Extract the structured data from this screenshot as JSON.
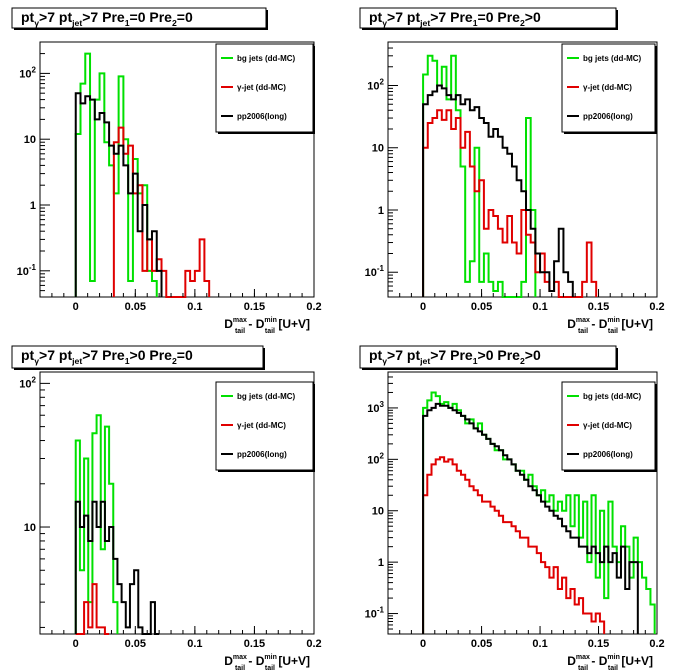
{
  "chart_data": [
    {
      "type": "line",
      "step": true,
      "title": "pt_γ>7  pt_jet>7  Pre_1=0  Pre_2=0",
      "xlabel": "D_tail^max - D_tail^min  [U+V]",
      "xlim": [
        -0.03,
        0.2
      ],
      "ylim": [
        0.04,
        300
      ],
      "log_y": true,
      "x_ticks": [
        "0",
        "0.05",
        "0.1",
        "0.15",
        "0.2"
      ],
      "y_ticks": [
        "10^-1",
        "1",
        "10",
        "10^2"
      ],
      "legend": [
        "bg jets (dd-MC)",
        "γ-jet (dd-MC)",
        "pp2006(long)"
      ],
      "legend_position": "top-right",
      "bin_width": 0.004,
      "series": [
        {
          "name": "bg jets (dd-MC)",
          "color": "#00e000",
          "x0": 0,
          "values": [
            12,
            70,
            200,
            0.07,
            40,
            100,
            9,
            4,
            1.5,
            90,
            10,
            0.07,
            5,
            1.5,
            2,
            0.1,
            0.07
          ]
        },
        {
          "name": "γ-jet (dd-MC)",
          "color": "#e00000",
          "x0": 0.032,
          "values": [
            9,
            15,
            6,
            8,
            1.5,
            2,
            0.1,
            0.3,
            0.1,
            0.15,
            0.1,
            0,
            0,
            0,
            0,
            0.1,
            0.07,
            0.1,
            0.3,
            0.07
          ]
        },
        {
          "name": "pp2006(long)",
          "color": "#000000",
          "x0": 0,
          "values": [
            50,
            35,
            45,
            40,
            20,
            25,
            18,
            8,
            6,
            8,
            4,
            1.5,
            3,
            0.4,
            1,
            0.3,
            0.4,
            0.1
          ]
        }
      ]
    },
    {
      "type": "line",
      "step": true,
      "title": "pt_γ>7  pt_jet>7  Pre_1=0  Pre_2>0",
      "xlabel": "D_tail^max - D_tail^min  [U+V]",
      "xlim": [
        -0.03,
        0.2
      ],
      "ylim": [
        0.04,
        500
      ],
      "log_y": true,
      "x_ticks": [
        "0",
        "0.05",
        "0.1",
        "0.15",
        "0.2"
      ],
      "y_ticks": [
        "10^-1",
        "1",
        "10",
        "10^2"
      ],
      "legend": [
        "bg jets (dd-MC)",
        "γ-jet (dd-MC)",
        "pp2006(long)"
      ],
      "legend_position": "top-right",
      "bin_width": 0.004,
      "series": [
        {
          "name": "bg jets (dd-MC)",
          "color": "#00e000",
          "x0": 0,
          "values": [
            150,
            300,
            250,
            100,
            200,
            60,
            300,
            40,
            5,
            0.07,
            0.15,
            10,
            0.07,
            0.2,
            0.07,
            0.05,
            0.07,
            0,
            0,
            0,
            0,
            0.07,
            30,
            1
          ]
        },
        {
          "name": "γ-jet (dd-MC)",
          "color": "#e00000",
          "x0": 0,
          "values": [
            10,
            25,
            30,
            40,
            28,
            40,
            20,
            30,
            10,
            18,
            5,
            2,
            3,
            0.5,
            1,
            0.8,
            0.5,
            0.3,
            0.8,
            0.3,
            0.2,
            1,
            0.4,
            0.3,
            0.1,
            0.2,
            0.07,
            0.05,
            0.07,
            0,
            0,
            0,
            0,
            0,
            0.07,
            0.3,
            0.07
          ]
        },
        {
          "name": "pp2006(long)",
          "color": "#000000",
          "x0": 0,
          "values": [
            50,
            70,
            80,
            100,
            90,
            70,
            60,
            70,
            50,
            60,
            40,
            45,
            30,
            25,
            15,
            20,
            15,
            10,
            8,
            5,
            3,
            2,
            1,
            0.5,
            0.2,
            0.1,
            0.1,
            0.05,
            0.15,
            0.5,
            0.1,
            0.07
          ]
        }
      ]
    },
    {
      "type": "line",
      "step": true,
      "title": "pt_γ>7  pt_jet>7  Pre_1>0  Pre_2=0",
      "xlabel": "D_tail^max - D_tail^min  [U+V]",
      "xlim": [
        -0.03,
        0.2
      ],
      "ylim": [
        1.8,
        120
      ],
      "log_y": true,
      "x_ticks": [
        "0",
        "0.05",
        "0.1",
        "0.15",
        "0.2"
      ],
      "y_ticks": [
        "10",
        "10^2"
      ],
      "legend": [
        "bg jets (dd-MC)",
        "γ-jet (dd-MC)",
        "pp2006(long)"
      ],
      "legend_position": "top-right",
      "bin_width": 0.0035,
      "series": [
        {
          "name": "bg jets (dd-MC)",
          "color": "#00e000",
          "x0": 0,
          "values": [
            40,
            5,
            30,
            3,
            45,
            60,
            7,
            50,
            20,
            3
          ]
        },
        {
          "name": "γ-jet (dd-MC)",
          "color": "#e00000",
          "x0": 0,
          "values": [
            1.8,
            1.8,
            3,
            2,
            4,
            2,
            2,
            1.8
          ]
        },
        {
          "name": "pp2006(long)",
          "color": "#000000",
          "x0": 0,
          "values": [
            15,
            10,
            12,
            8,
            15,
            10,
            15,
            8,
            10,
            6,
            4,
            3,
            2,
            4,
            5,
            2,
            1.8,
            1.8,
            3,
            1.8
          ]
        }
      ]
    },
    {
      "type": "line",
      "step": true,
      "title": "pt_γ>7  pt_jet>7  Pre_1>0  Pre_2>0",
      "xlabel": "D_tail^max - D_tail^min  [U+V]",
      "xlim": [
        -0.03,
        0.2
      ],
      "ylim": [
        0.04,
        5000
      ],
      "log_y": true,
      "x_ticks": [
        "0",
        "0.05",
        "0.1",
        "0.15",
        "0.2"
      ],
      "y_ticks": [
        "10^-1",
        "1",
        "10",
        "10^2",
        "10^3"
      ],
      "legend": [
        "bg jets (dd-MC)",
        "γ-jet (dd-MC)",
        "pp2006(long)"
      ],
      "legend_position": "top-right",
      "bin_width": 0.0036,
      "series": [
        {
          "name": "bg jets (dd-MC)",
          "color": "#00e000",
          "x0": 0,
          "values": [
            1000,
            1400,
            2000,
            1700,
            1200,
            1300,
            1000,
            1200,
            900,
            700,
            500,
            600,
            400,
            500,
            300,
            250,
            200,
            150,
            150,
            100,
            100,
            80,
            60,
            60,
            40,
            50,
            30,
            20,
            25,
            15,
            20,
            10,
            15,
            10,
            20,
            5,
            20,
            3,
            15,
            1,
            20,
            0.5,
            10,
            0.2,
            15,
            2,
            1,
            5,
            2,
            0.5,
            3,
            1,
            0.5,
            0.3,
            0.15
          ]
        },
        {
          "name": "γ-jet (dd-MC)",
          "color": "#e00000",
          "x0": 0,
          "values": [
            20,
            50,
            80,
            100,
            110,
            90,
            100,
            80,
            60,
            50,
            40,
            30,
            25,
            20,
            15,
            15,
            12,
            10,
            8,
            6,
            6,
            5,
            4,
            3,
            3,
            2,
            2,
            1.5,
            1,
            0.8,
            0.5,
            0.8,
            0.3,
            0.5,
            0.2,
            0.3,
            0.15,
            0.2,
            0.1,
            0.1,
            0.07,
            0.1,
            0.07
          ]
        },
        {
          "name": "pp2006(long)",
          "color": "#000000",
          "x0": 0,
          "values": [
            700,
            900,
            1000,
            1200,
            1100,
            1100,
            1000,
            900,
            800,
            700,
            600,
            500,
            400,
            350,
            300,
            250,
            200,
            180,
            150,
            120,
            100,
            80,
            60,
            50,
            40,
            30,
            25,
            20,
            15,
            12,
            10,
            8,
            7,
            5,
            4,
            3,
            3,
            2,
            2,
            1.5,
            2,
            1.5,
            1,
            2,
            1,
            1.5,
            0.5,
            2,
            0.3,
            1,
            1
          ]
        }
      ]
    }
  ]
}
